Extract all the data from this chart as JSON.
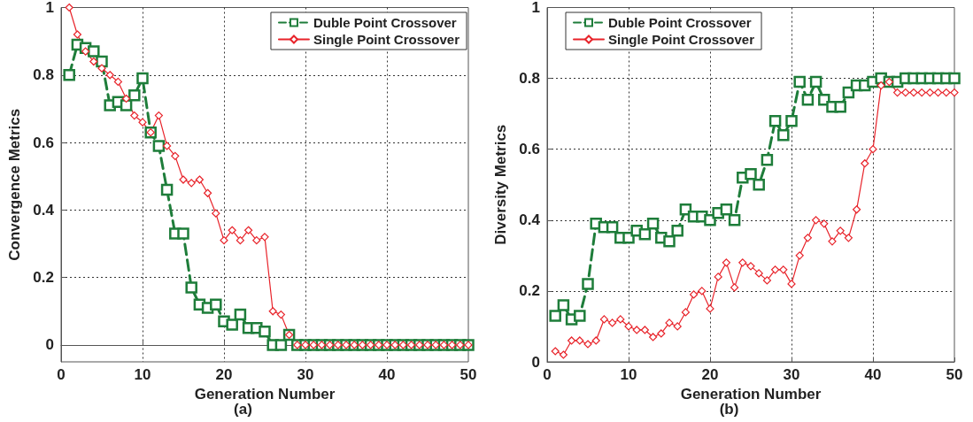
{
  "chart_data": [
    {
      "type": "line",
      "xlabel": "Generation Number",
      "ylabel": "Convergence Metrics",
      "annotations": [
        "(a)"
      ],
      "x": [
        1,
        2,
        3,
        4,
        5,
        6,
        7,
        8,
        9,
        10,
        11,
        12,
        13,
        14,
        15,
        16,
        17,
        18,
        19,
        20,
        21,
        22,
        23,
        24,
        25,
        26,
        27,
        28,
        29,
        30,
        31,
        32,
        33,
        34,
        35,
        36,
        37,
        38,
        39,
        40,
        41,
        42,
        43,
        44,
        45,
        46,
        47,
        48,
        49,
        50
      ],
      "xlim": [
        0,
        50
      ],
      "xticks": [
        0,
        10,
        20,
        30,
        40,
        50
      ],
      "ylim": [
        -0.05,
        1
      ],
      "yticks": [
        0,
        0.2,
        0.4,
        0.6,
        0.8,
        1
      ],
      "grid": true,
      "legend": "top right",
      "series": [
        {
          "name": "Duble Point Crossover",
          "color": "#1e7d3a",
          "marker": "square",
          "line_style": "dashed",
          "values": [
            0.8,
            0.89,
            0.88,
            0.87,
            0.84,
            0.71,
            0.72,
            0.71,
            0.74,
            0.79,
            0.63,
            0.59,
            0.46,
            0.33,
            0.33,
            0.17,
            0.12,
            0.11,
            0.12,
            0.07,
            0.06,
            0.09,
            0.05,
            0.05,
            0.04,
            0,
            0,
            0.03,
            0,
            0,
            0,
            0,
            0,
            0,
            0,
            0,
            0,
            0,
            0,
            0,
            0,
            0,
            0,
            0,
            0,
            0,
            0,
            0,
            0,
            0
          ]
        },
        {
          "name": "Single Point Crossover",
          "color": "#e8232a",
          "marker": "diamond",
          "line_style": "solid",
          "values": [
            1,
            0.92,
            0.87,
            0.84,
            0.82,
            0.8,
            0.78,
            0.73,
            0.68,
            0.66,
            0.63,
            0.68,
            0.59,
            0.56,
            0.49,
            0.48,
            0.49,
            0.45,
            0.39,
            0.31,
            0.34,
            0.31,
            0.34,
            0.31,
            0.32,
            0.1,
            0.09,
            0.03,
            0,
            0,
            0,
            0,
            0,
            0,
            0,
            0,
            0,
            0,
            0,
            0,
            0,
            0,
            0,
            0,
            0,
            0,
            0,
            0,
            0,
            0
          ]
        }
      ]
    },
    {
      "type": "line",
      "xlabel": "Generation Number",
      "ylabel": "Diversity Metrics",
      "annotations": [
        "(b)"
      ],
      "x": [
        1,
        2,
        3,
        4,
        5,
        6,
        7,
        8,
        9,
        10,
        11,
        12,
        13,
        14,
        15,
        16,
        17,
        18,
        19,
        20,
        21,
        22,
        23,
        24,
        25,
        26,
        27,
        28,
        29,
        30,
        31,
        32,
        33,
        34,
        35,
        36,
        37,
        38,
        39,
        40,
        41,
        42,
        43,
        44,
        45,
        46,
        47,
        48,
        49,
        50
      ],
      "xlim": [
        0,
        50
      ],
      "xticks": [
        0,
        10,
        20,
        30,
        40,
        50
      ],
      "ylim": [
        0,
        1
      ],
      "yticks": [
        0,
        0.2,
        0.4,
        0.6,
        0.8,
        1
      ],
      "grid": true,
      "legend": "top left",
      "series": [
        {
          "name": "Duble Point Crossover",
          "color": "#1e7d3a",
          "marker": "square",
          "line_style": "dashed",
          "values": [
            0.13,
            0.16,
            0.12,
            0.13,
            0.22,
            0.39,
            0.38,
            0.38,
            0.35,
            0.35,
            0.37,
            0.36,
            0.39,
            0.35,
            0.34,
            0.37,
            0.43,
            0.41,
            0.41,
            0.4,
            0.42,
            0.43,
            0.4,
            0.52,
            0.53,
            0.5,
            0.57,
            0.68,
            0.64,
            0.68,
            0.79,
            0.74,
            0.79,
            0.74,
            0.72,
            0.72,
            0.76,
            0.78,
            0.78,
            0.79,
            0.8,
            0.79,
            0.79,
            0.8,
            0.8,
            0.8,
            0.8,
            0.8,
            0.8,
            0.8
          ]
        },
        {
          "name": "Single Point Crossover",
          "color": "#e8232a",
          "marker": "diamond",
          "line_style": "solid",
          "values": [
            0.03,
            0.02,
            0.06,
            0.06,
            0.05,
            0.06,
            0.12,
            0.11,
            0.12,
            0.1,
            0.09,
            0.09,
            0.07,
            0.08,
            0.11,
            0.1,
            0.14,
            0.19,
            0.2,
            0.15,
            0.24,
            0.28,
            0.21,
            0.28,
            0.27,
            0.25,
            0.23,
            0.26,
            0.26,
            0.22,
            0.3,
            0.35,
            0.4,
            0.39,
            0.34,
            0.37,
            0.35,
            0.43,
            0.56,
            0.6,
            0.78,
            0.79,
            0.76,
            0.76,
            0.76,
            0.76,
            0.76,
            0.76,
            0.76,
            0.76
          ]
        }
      ]
    }
  ]
}
